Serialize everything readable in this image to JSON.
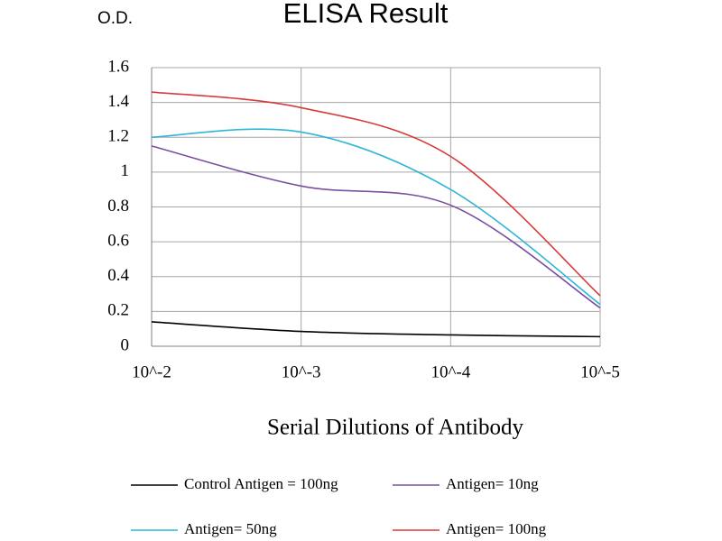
{
  "chart_data": {
    "type": "line",
    "title": "ELISA Result",
    "y_label": "O.D.",
    "x_label": "Serial Dilutions of Antibody",
    "categories": [
      "10^-2",
      "10^-3",
      "10^-4",
      "10^-5"
    ],
    "series": [
      {
        "name": "Control Antigen = 100ng",
        "color": "#000000",
        "values": [
          0.14,
          0.085,
          0.065,
          0.055
        ]
      },
      {
        "name": "Antigen= 10ng",
        "color": "#7a4fa0",
        "values": [
          1.15,
          0.92,
          0.81,
          0.22
        ]
      },
      {
        "name": "Antigen= 50ng",
        "color": "#2fb5d8",
        "values": [
          1.2,
          1.23,
          0.9,
          0.24
        ]
      },
      {
        "name": "Antigen= 100ng",
        "color": "#d83a3a",
        "values": [
          1.46,
          1.37,
          1.09,
          0.29
        ]
      }
    ],
    "ylim": [
      0,
      1.6
    ],
    "yticks": [
      0,
      0.2,
      0.4,
      0.6,
      0.8,
      1,
      1.2,
      1.4,
      1.6
    ],
    "grid": true
  }
}
